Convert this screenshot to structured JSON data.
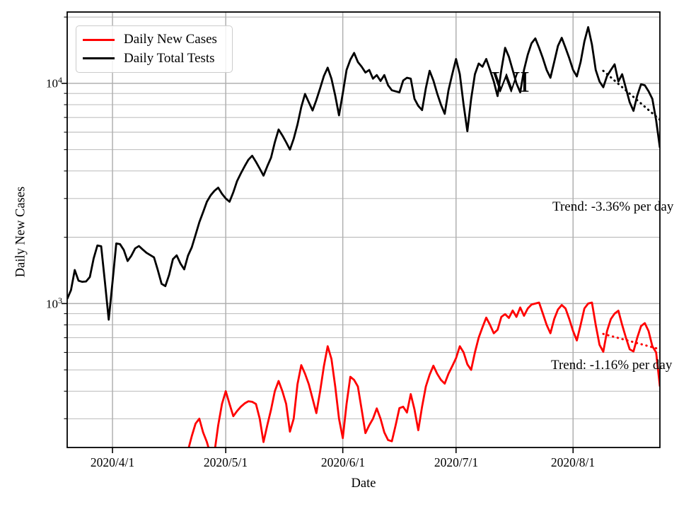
{
  "chart_data": {
    "type": "line",
    "title": "",
    "xlabel": "Date",
    "ylabel": "Daily New Cases",
    "y_scale": "log",
    "ylim": [
      222,
      21080
    ],
    "grid": true,
    "grid_color": "#b0b0b0",
    "x_start_date": "2020/3/20",
    "x_end_date": "2020/8/24",
    "x_tick_labels": [
      "2020/4/1",
      "2020/5/1",
      "2020/6/1",
      "2020/7/1",
      "2020/8/1"
    ],
    "x_tick_day_index": [
      12,
      42,
      73,
      103,
      134
    ],
    "y_ticks": [
      {
        "label_base": "10",
        "exponent": "4",
        "value": 10000
      },
      {
        "label_base": "10",
        "exponent": "3",
        "value": 1000
      }
    ],
    "y_major_gridlines": [
      1000,
      10000
    ],
    "y_minor_gridlines": [
      300,
      400,
      500,
      600,
      700,
      800,
      900,
      2000,
      3000,
      4000,
      5000,
      6000,
      7000,
      8000,
      9000,
      20000
    ],
    "legend": {
      "position": "upper-left",
      "entries": [
        "Daily New Cases",
        "Daily Total Tests"
      ]
    },
    "annotations": [
      {
        "text": "WI"
      }
    ],
    "series": [
      {
        "name": "Daily New Cases",
        "color": "#ff0000",
        "values": [
          null,
          null,
          null,
          null,
          null,
          null,
          null,
          null,
          null,
          null,
          null,
          null,
          null,
          null,
          null,
          null,
          null,
          null,
          null,
          null,
          null,
          null,
          null,
          null,
          null,
          null,
          null,
          null,
          null,
          null,
          null,
          null,
          215,
          250,
          285,
          300,
          260,
          235,
          205,
          210,
          280,
          350,
          400,
          350,
          308,
          325,
          340,
          352,
          360,
          358,
          350,
          300,
          235,
          280,
          330,
          400,
          445,
          400,
          350,
          262,
          300,
          430,
          525,
          480,
          430,
          370,
          318,
          400,
          520,
          640,
          560,
          420,
          300,
          245,
          350,
          465,
          450,
          420,
          330,
          258,
          280,
          300,
          334,
          300,
          260,
          240,
          237,
          280,
          335,
          340,
          320,
          388,
          330,
          266,
          340,
          420,
          475,
          522,
          480,
          450,
          433,
          480,
          520,
          565,
          640,
          600,
          530,
          500,
          600,
          700,
          780,
          863,
          800,
          733,
          760,
          870,
          895,
          860,
          930,
          870,
          960,
          880,
          950,
          990,
          1000,
          1010,
          900,
          800,
          733,
          850,
          940,
          985,
          950,
          850,
          750,
          680,
          800,
          950,
          1000,
          1010,
          800,
          650,
          604,
          750,
          850,
          900,
          928,
          800,
          700,
          620,
          606,
          700,
          790,
          815,
          750,
          640,
          600,
          420
        ]
      },
      {
        "name": "Daily Total Tests",
        "color": "#000000",
        "values": [
          1050,
          1150,
          1420,
          1270,
          1255,
          1260,
          1320,
          1600,
          1835,
          1820,
          1250,
          845,
          1250,
          1875,
          1860,
          1750,
          1560,
          1650,
          1780,
          1825,
          1760,
          1700,
          1660,
          1620,
          1420,
          1230,
          1200,
          1350,
          1590,
          1655,
          1520,
          1430,
          1650,
          1800,
          2050,
          2340,
          2600,
          2900,
          3100,
          3250,
          3360,
          3150,
          3000,
          2900,
          3200,
          3600,
          3900,
          4200,
          4500,
          4690,
          4400,
          4100,
          3810,
          4200,
          4600,
          5400,
          6170,
          5800,
          5400,
          5000,
          5600,
          6500,
          7800,
          8950,
          8200,
          7530,
          8400,
          9500,
          10800,
          11780,
          10500,
          8800,
          7160,
          9000,
          11500,
          12800,
          13740,
          12500,
          11900,
          11200,
          11500,
          10500,
          10900,
          10250,
          10900,
          9800,
          9300,
          9200,
          9100,
          10300,
          10600,
          10500,
          8500,
          7900,
          7560,
          9500,
          11400,
          10300,
          9000,
          8000,
          7270,
          9300,
          11000,
          12900,
          11000,
          8000,
          6060,
          8500,
          11000,
          12300,
          11900,
          12900,
          11500,
          10200,
          8750,
          11500,
          14500,
          13200,
          11500,
          10000,
          9100,
          11500,
          13500,
          15200,
          16000,
          14500,
          13000,
          11500,
          10600,
          12500,
          14800,
          16100,
          14500,
          13000,
          11500,
          10750,
          12500,
          15500,
          18000,
          15000,
          11500,
          10200,
          9600,
          10800,
          11500,
          12200,
          10200,
          11000,
          9500,
          8200,
          7500,
          8800,
          9900,
          9800,
          9200,
          8500,
          6800,
          5100
        ]
      }
    ],
    "trend_lines": [
      {
        "label": "Trend: -3.36% per day",
        "series": "Daily Total Tests",
        "color": "#000000",
        "style": "dotted",
        "start_day": 142,
        "start_value": 11400,
        "end_day": 157,
        "end_value": 6830
      },
      {
        "label": "Trend: -1.16% per day",
        "series": "Daily New Cases",
        "color": "#ff0000",
        "style": "dotted",
        "start_day": 142,
        "start_value": 728,
        "end_day": 157,
        "end_value": 620
      }
    ]
  }
}
